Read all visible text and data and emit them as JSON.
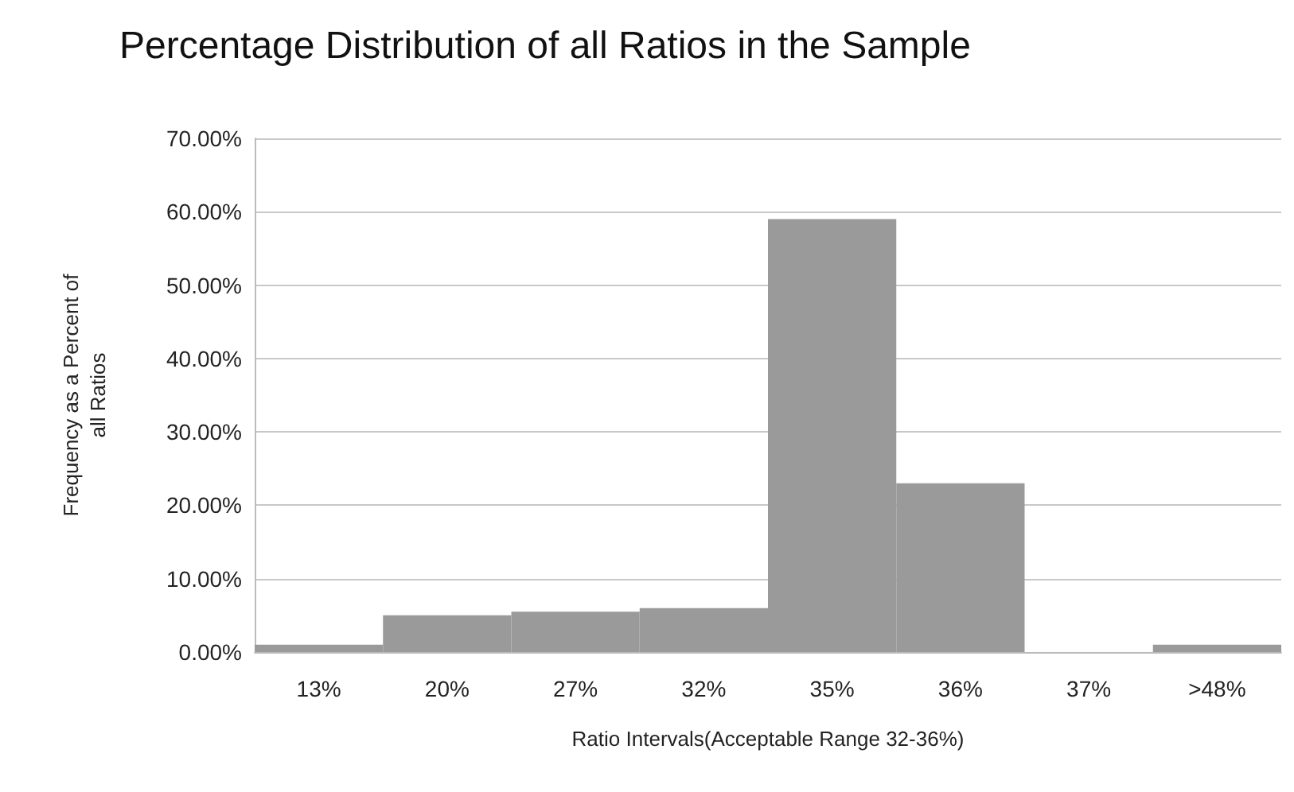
{
  "chart_data": {
    "type": "bar",
    "title": "Percentage Distribution of all Ratios in the Sample",
    "xlabel": "Ratio Intervals(Acceptable Range 32-36%)",
    "ylabel": "Frequency as a Percent of all Ratios",
    "categories": [
      "13%",
      "20%",
      "27%",
      "32%",
      "35%",
      "36%",
      "37%",
      ">48%"
    ],
    "values": [
      1,
      5,
      5.5,
      6,
      59,
      23,
      0,
      1
    ],
    "color": "#9a9a9a",
    "ylim": [
      0,
      70
    ],
    "yticks": [
      {
        "value": 0,
        "label": "0.00%"
      },
      {
        "value": 10,
        "label": "10.00%"
      },
      {
        "value": 20,
        "label": "20.00%"
      },
      {
        "value": 30,
        "label": "30.00%"
      },
      {
        "value": 40,
        "label": "40.00%"
      },
      {
        "value": 50,
        "label": "50.00%"
      },
      {
        "value": 60,
        "label": "60.00%"
      },
      {
        "value": 70,
        "label": "70.00%"
      }
    ],
    "grid": "y"
  }
}
